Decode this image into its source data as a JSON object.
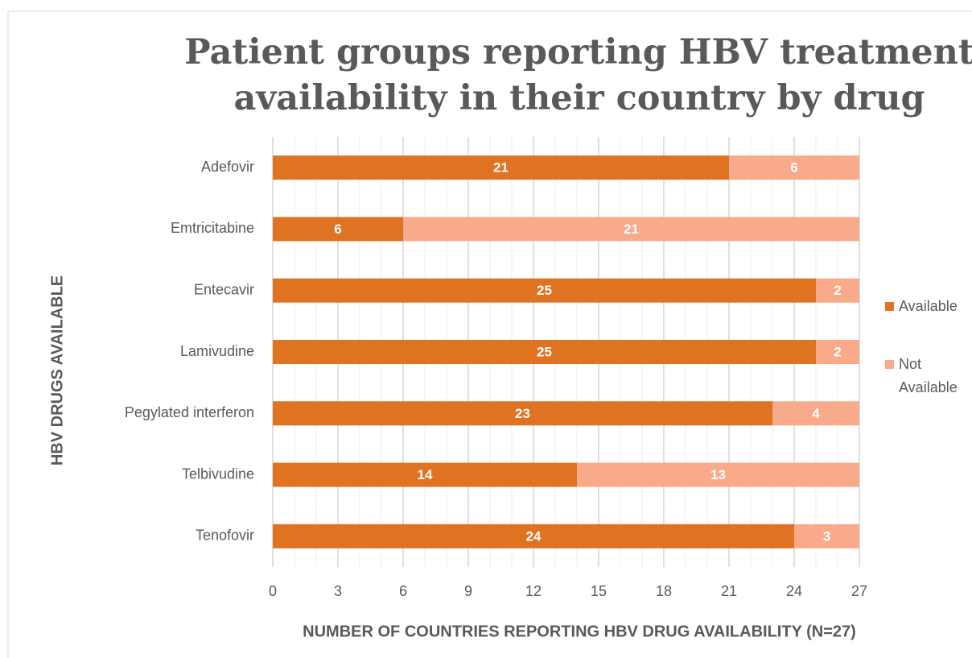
{
  "chart_data": {
    "type": "stacked_barh",
    "title": [
      "Patient groups reporting HBV treatment",
      "availability in their country by drug"
    ],
    "xlabel": "NUMBER OF COUNTRIES REPORTING HBV DRUG AVAILABILITY (N=27)",
    "ylabel": "HBV DRUGS AVAILABLE",
    "categories": [
      "Adefovir",
      "Emtricitabine",
      "Entecavir",
      "Lamivudine",
      "Pegylated interferon",
      "Telbivudine",
      "Tenofovir"
    ],
    "series": [
      {
        "name": "Available",
        "color": "#e07322",
        "values": [
          21,
          6,
          25,
          25,
          23,
          14,
          24
        ]
      },
      {
        "name": "Not Available",
        "color": "#f9aa8a",
        "values": [
          6,
          21,
          2,
          2,
          4,
          13,
          3
        ]
      }
    ],
    "xlim": [
      0,
      27
    ],
    "xticks": [
      0,
      3,
      6,
      9,
      12,
      15,
      18,
      21,
      24,
      27
    ],
    "grid": true,
    "minor_grid": true,
    "legend": "right"
  }
}
